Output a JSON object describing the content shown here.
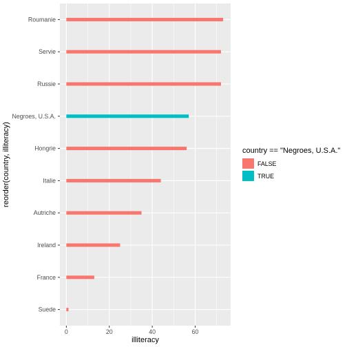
{
  "chart_data": {
    "type": "bar",
    "orientation": "horizontal",
    "categories": [
      "Suede",
      "France",
      "Ireland",
      "Autriche",
      "Italie",
      "Hongrie",
      "Negroes, U.S.A.",
      "Russie",
      "Servie",
      "Roumanie"
    ],
    "values": [
      1,
      13,
      25,
      35,
      44,
      56,
      57,
      72,
      72,
      73
    ],
    "groups": [
      "FALSE",
      "FALSE",
      "FALSE",
      "FALSE",
      "FALSE",
      "FALSE",
      "TRUE",
      "FALSE",
      "FALSE",
      "FALSE"
    ],
    "xlabel": "illiteracy",
    "ylabel": "reorder(country, illiteracy)",
    "xlim": [
      -3,
      76.5
    ],
    "x_ticks": [
      0,
      20,
      40,
      60
    ],
    "grid": true,
    "legend": {
      "title": "country == \"Negroes, U.S.A.\"",
      "placement": "right",
      "entries": [
        {
          "label": "FALSE",
          "color": "#F8766D"
        },
        {
          "label": "TRUE",
          "color": "#00BFC4"
        }
      ]
    },
    "colors": {
      "FALSE": "#F8766D",
      "TRUE": "#00BFC4",
      "panel": "#EBEBEB",
      "grid": "#FFFFFF"
    }
  }
}
